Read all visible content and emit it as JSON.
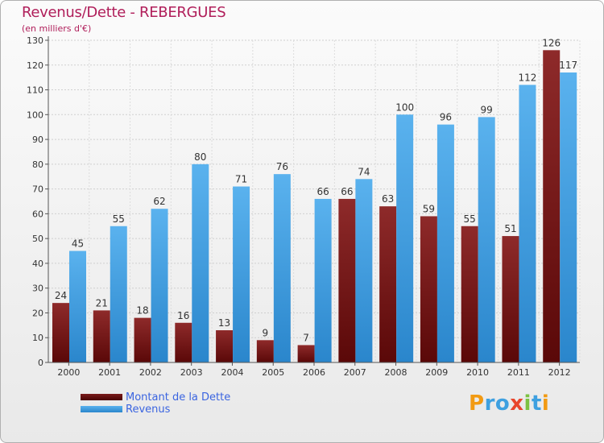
{
  "header": {
    "title": "Revenus/Dette - REBERGUES",
    "subtitle": "(en milliers d'€)"
  },
  "chart_data": {
    "type": "bar",
    "title": "Revenus/Dette - REBERGUES",
    "subtitle": "(en milliers d'€)",
    "categories": [
      "2000",
      "2001",
      "2002",
      "2003",
      "2004",
      "2005",
      "2006",
      "2007",
      "2008",
      "2009",
      "2010",
      "2011",
      "2012"
    ],
    "series": [
      {
        "name": "Montant de la Dette",
        "color": "#7a1a1a",
        "values": [
          24,
          21,
          18,
          16,
          13,
          9,
          7,
          66,
          63,
          59,
          55,
          51,
          126
        ]
      },
      {
        "name": "Revenus",
        "color": "#3a9ae0",
        "values": [
          45,
          55,
          62,
          80,
          71,
          76,
          66,
          74,
          100,
          96,
          99,
          112,
          117
        ]
      }
    ],
    "ylim": [
      0,
      130
    ],
    "yticks": [
      0,
      10,
      20,
      30,
      40,
      50,
      60,
      70,
      80,
      90,
      100,
      110,
      120,
      130
    ],
    "grid": true,
    "legend_position": "bottom-left"
  },
  "legend": {
    "items": [
      {
        "label": "Montant de la Dette",
        "color": "#6a0f0f"
      },
      {
        "label": "Revenus",
        "color": "#3a9ae0"
      }
    ]
  },
  "logo": {
    "letters": [
      "P",
      "r",
      "o",
      "x",
      "i",
      "t",
      "i"
    ]
  }
}
